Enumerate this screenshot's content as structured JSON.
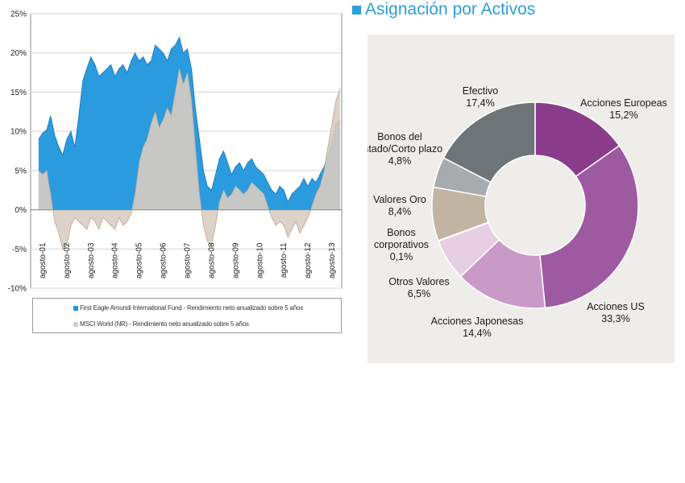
{
  "chart_data": [
    {
      "type": "area",
      "title": "",
      "xlabel": "",
      "ylabel": "",
      "ylim": [
        -10,
        25
      ],
      "y_ticks": [
        "25%",
        "20%",
        "15%",
        "10%",
        "5%",
        "0%",
        "-5%",
        "-10%"
      ],
      "x_tick_labels": [
        "agosto-01",
        "agosto-02",
        "agosto-03",
        "agosto-04",
        "agosto-05",
        "agosto-06",
        "agosto-07",
        "agosto-08",
        "agosto-09",
        "agosto-10",
        "agosto-11",
        "agosto-12",
        "agosto-13"
      ],
      "grid": "horizontal",
      "series": [
        {
          "name": "First Eagle Amundi International Fund - Rendimiento neto anualizado sobre 5 años",
          "color": "#1f96dc",
          "x": [
            2001.33,
            2001.5,
            2001.67,
            2001.83,
            2002.0,
            2002.17,
            2002.33,
            2002.5,
            2002.67,
            2002.83,
            2003.0,
            2003.17,
            2003.33,
            2003.5,
            2003.67,
            2003.83,
            2004.0,
            2004.17,
            2004.33,
            2004.5,
            2004.67,
            2004.83,
            2005.0,
            2005.17,
            2005.33,
            2005.5,
            2005.67,
            2005.83,
            2006.0,
            2006.17,
            2006.33,
            2006.5,
            2006.67,
            2006.83,
            2007.0,
            2007.17,
            2007.33,
            2007.5,
            2007.67,
            2007.83,
            2008.0,
            2008.17,
            2008.33,
            2008.5,
            2008.67,
            2008.83,
            2009.0,
            2009.17,
            2009.33,
            2009.5,
            2009.67,
            2009.83,
            2010.0,
            2010.17,
            2010.33,
            2010.5,
            2010.67,
            2010.83,
            2011.0,
            2011.17,
            2011.33,
            2011.5,
            2011.67,
            2011.83,
            2012.0,
            2012.17,
            2012.33,
            2012.5,
            2012.67,
            2012.83,
            2013.0,
            2013.17,
            2013.33,
            2013.5,
            2013.67,
            2013.83
          ],
          "values": [
            9.0,
            9.8,
            10.2,
            12.0,
            9.5,
            8.0,
            7.0,
            9.0,
            10.0,
            8.0,
            12.0,
            16.5,
            18.0,
            19.5,
            18.5,
            17.0,
            17.5,
            18.0,
            18.5,
            17.0,
            18.0,
            18.5,
            17.5,
            19.0,
            20.0,
            19.0,
            19.5,
            18.5,
            19.0,
            21.0,
            20.5,
            20.0,
            19.0,
            20.5,
            21.0,
            22.0,
            20.0,
            20.5,
            18.0,
            13.0,
            9.0,
            5.0,
            3.0,
            2.5,
            4.5,
            6.5,
            7.5,
            6.0,
            4.5,
            5.5,
            6.0,
            5.0,
            6.0,
            6.5,
            5.5,
            5.0,
            4.5,
            3.5,
            2.5,
            2.0,
            3.0,
            2.5,
            1.0,
            2.0,
            2.5,
            3.0,
            4.0,
            3.0,
            4.0,
            3.5,
            4.5,
            5.5,
            7.0,
            9.0,
            11.0,
            11.5
          ]
        },
        {
          "name": "MSCI World (NR) - Rendimiento neto anualizado sobre 5 años",
          "color": "#d8cdc2",
          "x": [
            2001.33,
            2001.5,
            2001.67,
            2001.83,
            2002.0,
            2002.17,
            2002.33,
            2002.5,
            2002.67,
            2002.83,
            2003.0,
            2003.17,
            2003.33,
            2003.5,
            2003.67,
            2003.83,
            2004.0,
            2004.17,
            2004.33,
            2004.5,
            2004.67,
            2004.83,
            2005.0,
            2005.17,
            2005.33,
            2005.5,
            2005.67,
            2005.83,
            2006.0,
            2006.17,
            2006.33,
            2006.5,
            2006.67,
            2006.83,
            2007.0,
            2007.17,
            2007.33,
            2007.5,
            2007.67,
            2007.83,
            2008.0,
            2008.17,
            2008.33,
            2008.5,
            2008.67,
            2008.83,
            2009.0,
            2009.17,
            2009.33,
            2009.5,
            2009.67,
            2009.83,
            2010.0,
            2010.17,
            2010.33,
            2010.5,
            2010.67,
            2010.83,
            2011.0,
            2011.17,
            2011.33,
            2011.5,
            2011.67,
            2011.83,
            2012.0,
            2012.17,
            2012.33,
            2012.5,
            2012.67,
            2012.83,
            2013.0,
            2013.17,
            2013.33,
            2013.5,
            2013.67,
            2013.83
          ],
          "values": [
            5.0,
            4.5,
            5.0,
            2.0,
            -1.5,
            -3.0,
            -5.0,
            -4.5,
            -2.0,
            -1.0,
            -1.5,
            -2.0,
            -2.5,
            -1.0,
            -1.5,
            -2.5,
            -1.0,
            -1.5,
            -2.0,
            -2.5,
            -1.0,
            -2.0,
            -1.5,
            -0.5,
            2.0,
            6.0,
            8.0,
            9.0,
            11.0,
            12.5,
            10.5,
            11.5,
            13.0,
            12.0,
            15.0,
            18.0,
            16.0,
            17.5,
            14.0,
            8.0,
            2.0,
            -2.0,
            -4.0,
            -4.5,
            -2.0,
            1.0,
            2.5,
            1.5,
            2.0,
            3.0,
            2.5,
            2.0,
            2.5,
            3.5,
            3.0,
            2.5,
            2.0,
            0.5,
            -1.0,
            -2.0,
            -1.5,
            -2.0,
            -3.5,
            -2.5,
            -1.5,
            -3.0,
            -2.0,
            -1.0,
            0.5,
            2.0,
            3.0,
            5.0,
            8.0,
            11.0,
            14.0,
            15.5
          ]
        }
      ]
    },
    {
      "type": "pie",
      "subtype": "donut",
      "title": "Asignación por Activos",
      "slices": [
        {
          "label": "Acciones Europeas",
          "value": 15.2,
          "value_label": "15,2%",
          "color": "#8a3c8a"
        },
        {
          "label": "Acciones US",
          "value": 33.3,
          "value_label": "33,3%",
          "color": "#9d5aa1"
        },
        {
          "label": "Acciones Japonesas",
          "value": 14.4,
          "value_label": "14,4%",
          "color": "#c99ac7"
        },
        {
          "label": "Otros Valores",
          "value": 6.5,
          "value_label": "6,5%",
          "color": "#e6cfe3"
        },
        {
          "label": "Bonos corporativos",
          "value": 0.1,
          "value_label": "0,1%",
          "color": "#e8d9e4"
        },
        {
          "label": "Valores Oro",
          "value": 8.4,
          "value_label": "8,4%",
          "color": "#c2b4a2"
        },
        {
          "label": "Bonos del Estado/Corto plazo",
          "value": 4.8,
          "value_label": "4,8%",
          "color": "#a7abae"
        },
        {
          "label": "Efectivo",
          "value": 17.4,
          "value_label": "17,4%",
          "color": "#6f7478"
        }
      ]
    }
  ]
}
